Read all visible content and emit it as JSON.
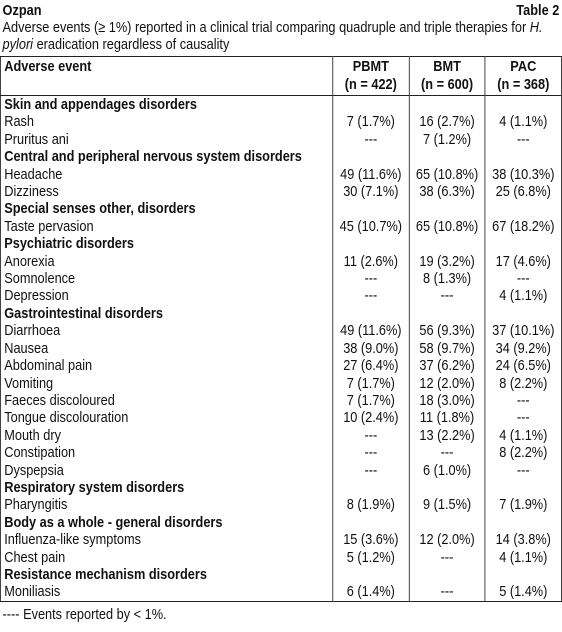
{
  "header": {
    "title": "Ozpan",
    "table_label": "Table 2",
    "caption": [
      "Adverse events (≥ 1%) reported in a clinical trial comparing quadruple and triple therapies for ",
      "H. pylori",
      " eradication regardless of causality"
    ]
  },
  "table": {
    "columns": [
      [
        "Adverse event"
      ],
      [
        "PBMT",
        "(n = 422)"
      ],
      [
        "BMT",
        "(n = 600)"
      ],
      [
        "PAC",
        "(n = 368)"
      ]
    ],
    "sections": [
      {
        "title": "Skin and appendages disorders",
        "rows": [
          [
            "Rash",
            "7 (1.7%)",
            "16 (2.7%)",
            "4 (1.1%)"
          ],
          [
            "Pruritus ani",
            "---",
            "7 (1.2%)",
            "---"
          ]
        ]
      },
      {
        "title": "Central and peripheral nervous system disorders",
        "rows": [
          [
            "Headache",
            "49 (11.6%)",
            "65 (10.8%)",
            "38 (10.3%)"
          ],
          [
            "Dizziness",
            "30 (7.1%)",
            "38 (6.3%)",
            "25 (6.8%)"
          ]
        ]
      },
      {
        "title": "Special senses other, disorders",
        "rows": [
          [
            "Taste pervasion",
            "45 (10.7%)",
            "65 (10.8%)",
            "67 (18.2%)"
          ]
        ]
      },
      {
        "title": "Psychiatric disorders",
        "rows": [
          [
            "Anorexia",
            "11 (2.6%)",
            "19 (3.2%)",
            "17 (4.6%)"
          ],
          [
            "Somnolence",
            "---",
            "8 (1.3%)",
            "---"
          ],
          [
            "Depression",
            "---",
            "---",
            "4 (1.1%)"
          ]
        ]
      },
      {
        "title": "Gastrointestinal disorders",
        "rows": [
          [
            "Diarrhoea",
            "49 (11.6%)",
            "56 (9.3%)",
            "37 (10.1%)"
          ],
          [
            "Nausea",
            "38 (9.0%)",
            "58 (9.7%)",
            "34 (9.2%)"
          ],
          [
            "Abdominal pain",
            "27 (6.4%)",
            "37 (6.2%)",
            "24 (6.5%)"
          ],
          [
            "Vomiting",
            "7 (1.7%)",
            "12 (2.0%)",
            "8 (2.2%)"
          ],
          [
            "Faeces discoloured",
            "7 (1.7%)",
            "18 (3.0%)",
            "---"
          ],
          [
            "Tongue discolouration",
            "10 (2.4%)",
            "11 (1.8%)",
            "---"
          ],
          [
            "Mouth dry",
            "---",
            "13 (2.2%)",
            "4 (1.1%)"
          ],
          [
            "Constipation",
            "---",
            "---",
            "8 (2.2%)"
          ],
          [
            "Dyspepsia",
            "---",
            "6 (1.0%)",
            "---"
          ]
        ]
      },
      {
        "title": "Respiratory system disorders",
        "rows": [
          [
            "Pharyngitis",
            "8 (1.9%)",
            "9 (1.5%)",
            "7 (1.9%)"
          ]
        ]
      },
      {
        "title": "Body as a whole - general disorders",
        "rows": [
          [
            "Influenza-like symptoms",
            "15 (3.6%)",
            "12 (2.0%)",
            "14 (3.8%)"
          ],
          [
            "Chest pain",
            "5 (1.2%)",
            "---",
            "4 (1.1%)"
          ]
        ]
      },
      {
        "title": "Resistance mechanism disorders",
        "rows": [
          [
            "Moniliasis",
            "6 (1.4%)",
            "---",
            "5 (1.4%)"
          ]
        ]
      }
    ]
  },
  "footnote": "---- Events reported by < 1%."
}
